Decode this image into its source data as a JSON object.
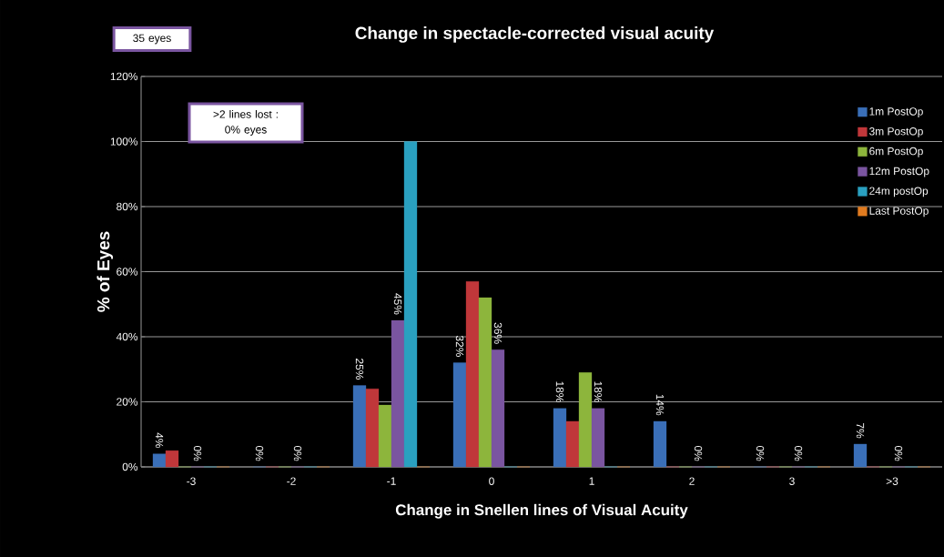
{
  "chart_data": {
    "type": "bar",
    "title": "Change in spectacle-corrected visual acuity",
    "xlabel": "Change in Snellen lines of Visual Acuity",
    "ylabel": "% of Eyes",
    "annotations": [
      "35 eyes",
      ">2 lines lost :",
      "0% eyes"
    ],
    "categories": [
      "-3",
      "-2",
      "-1",
      "0",
      "1",
      "2",
      "3",
      ">3"
    ],
    "series": [
      {
        "name": "1m PostOp",
        "color": "#3a6fb8",
        "values": [
          4,
          0,
          25,
          32,
          18,
          14,
          0,
          7
        ],
        "value_labels": [
          "4%",
          "0%",
          "25%",
          "32%",
          "18%",
          "14%",
          "0%",
          "7%"
        ]
      },
      {
        "name": "3m PostOp",
        "color": "#c0373a",
        "values": [
          5,
          0,
          24,
          57,
          14,
          0,
          0,
          0
        ]
      },
      {
        "name": "6m PostOp",
        "color": "#8db53c",
        "values": [
          0,
          0,
          19,
          52,
          29,
          0,
          0,
          0
        ]
      },
      {
        "name": "12m PostOp",
        "color": "#7a55a0",
        "values": [
          0,
          0,
          45,
          36,
          18,
          0,
          0,
          0
        ],
        "value_labels": [
          "0%",
          "0%",
          "45%",
          "36%",
          "18%",
          "0%",
          "0%",
          "0%"
        ]
      },
      {
        "name": "24m postOp",
        "color": "#2aa0c0",
        "values": [
          0,
          0,
          100,
          0,
          0,
          0,
          0,
          0
        ]
      },
      {
        "name": "Last PostOp",
        "color": "#e07b20",
        "values": [
          0,
          0,
          0,
          0,
          0,
          0,
          0,
          0
        ]
      }
    ],
    "ylim": [
      0,
      120
    ],
    "yticks": [
      {
        "value": 0,
        "label": "0%"
      },
      {
        "value": 20,
        "label": "20%"
      },
      {
        "value": 40,
        "label": "40%"
      },
      {
        "value": 60,
        "label": "60%"
      },
      {
        "value": 80,
        "label": "80%"
      },
      {
        "value": 100,
        "label": "100%"
      },
      {
        "value": 120,
        "label": "120%"
      }
    ],
    "grid": "y",
    "legend": "right"
  }
}
